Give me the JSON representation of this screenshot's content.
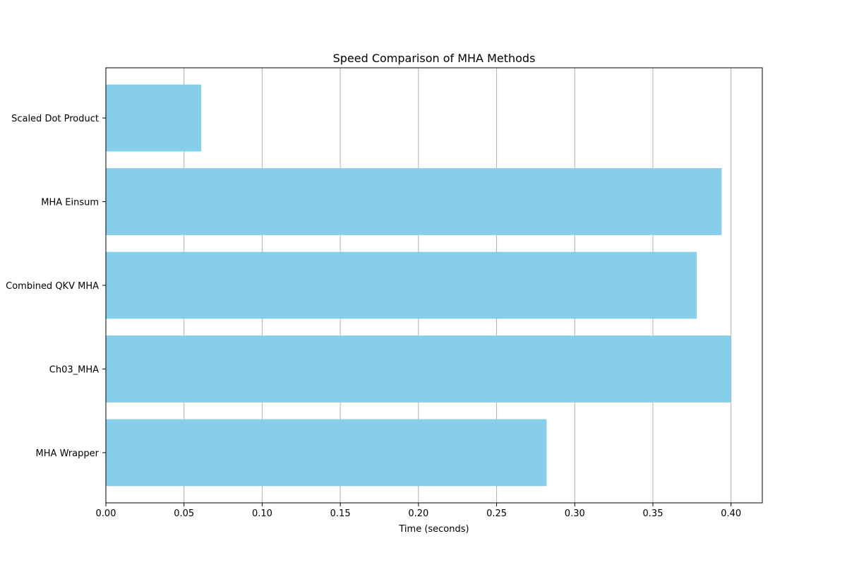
{
  "chart_data": {
    "type": "bar",
    "orientation": "horizontal",
    "title": "Speed Comparison of MHA Methods",
    "xlabel": "Time (seconds)",
    "ylabel": "",
    "categories": [
      "MHA Wrapper",
      "Ch03_MHA",
      "Combined QKV MHA",
      "MHA Einsum",
      "Scaled Dot Product"
    ],
    "values": [
      0.282,
      0.4,
      0.378,
      0.394,
      0.061
    ],
    "xlim": [
      0,
      0.42
    ],
    "xticks": [
      0.0,
      0.05,
      0.1,
      0.15,
      0.2,
      0.25,
      0.3,
      0.35,
      0.4
    ],
    "xtick_labels": [
      "0.00",
      "0.05",
      "0.10",
      "0.15",
      "0.20",
      "0.25",
      "0.30",
      "0.35",
      "0.40"
    ],
    "grid": "x",
    "legend": "none",
    "bar_color": "#87CEEB",
    "grid_color": "#b0b0b0"
  }
}
